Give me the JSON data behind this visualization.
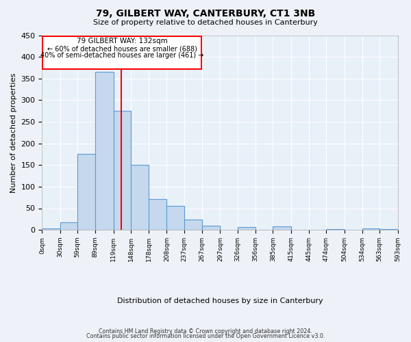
{
  "title": "79, GILBERT WAY, CANTERBURY, CT1 3NB",
  "subtitle": "Size of property relative to detached houses in Canterbury",
  "xlabel": "Distribution of detached houses by size in Canterbury",
  "ylabel": "Number of detached properties",
  "bar_color": "#c5d8ed",
  "bar_edge_color": "#5b9bd5",
  "background_color": "#e8f0f8",
  "grid_color": "#ffffff",
  "property_line_x": 132,
  "annotation_title": "79 GILBERT WAY: 132sqm",
  "annotation_line1": "← 60% of detached houses are smaller (688)",
  "annotation_line2": "40% of semi-detached houses are larger (461) →",
  "footnote1": "Contains HM Land Registry data © Crown copyright and database right 2024.",
  "footnote2": "Contains public sector information licensed under the Open Government Licence v3.0.",
  "bin_edges": [
    0,
    30,
    59,
    89,
    119,
    148,
    178,
    208,
    237,
    267,
    297,
    326,
    356,
    385,
    415,
    445,
    474,
    504,
    534,
    563,
    593
  ],
  "bin_labels": [
    "0sqm",
    "30sqm",
    "59sqm",
    "89sqm",
    "119sqm",
    "148sqm",
    "178sqm",
    "208sqm",
    "237sqm",
    "267sqm",
    "297sqm",
    "326sqm",
    "356sqm",
    "385sqm",
    "415sqm",
    "445sqm",
    "474sqm",
    "504sqm",
    "534sqm",
    "563sqm",
    "593sqm"
  ],
  "bar_heights": [
    3,
    18,
    176,
    365,
    275,
    151,
    71,
    55,
    24,
    9,
    0,
    6,
    0,
    8,
    0,
    0,
    2,
    0,
    3,
    2
  ],
  "ylim": [
    0,
    450
  ],
  "yticks": [
    0,
    50,
    100,
    150,
    200,
    250,
    300,
    350,
    400,
    450
  ]
}
